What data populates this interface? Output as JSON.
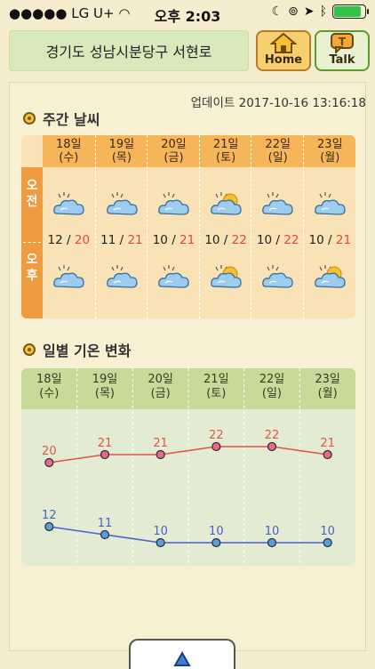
{
  "status": {
    "carrier": "LG U+",
    "time": "오후 2:03",
    "battery_level": 0.9
  },
  "header": {
    "location": "경기도 성남시분당구 서현로",
    "home_label": "Home",
    "talk_label": "Talk"
  },
  "update_text": "업데이트 2017-10-16 13:16:18",
  "weekly": {
    "title": "주간 날씨",
    "am_label": "오\n전",
    "pm_label": "오\n후",
    "days": [
      {
        "date": "18일",
        "dow": "(수)",
        "low": "12",
        "high": "20",
        "am_icon": "cloudy-icon",
        "pm_icon": "cloudy-icon"
      },
      {
        "date": "19일",
        "dow": "(목)",
        "low": "11",
        "high": "21",
        "am_icon": "cloudy-icon",
        "pm_icon": "cloudy-icon"
      },
      {
        "date": "20일",
        "dow": "(금)",
        "low": "10",
        "high": "21",
        "am_icon": "cloudy-icon",
        "pm_icon": "cloudy-icon"
      },
      {
        "date": "21일",
        "dow": "(토)",
        "low": "10",
        "high": "22",
        "am_icon": "partly-cloudy-icon",
        "pm_icon": "partly-cloudy-icon"
      },
      {
        "date": "22일",
        "dow": "(일)",
        "low": "10",
        "high": "22",
        "am_icon": "cloudy-icon",
        "pm_icon": "cloudy-icon"
      },
      {
        "date": "23일",
        "dow": "(월)",
        "low": "10",
        "high": "21",
        "am_icon": "cloudy-icon",
        "pm_icon": "partly-cloudy-icon"
      }
    ]
  },
  "daily_change": {
    "title": "일별 기온 변화"
  },
  "chart_data": {
    "type": "line",
    "categories": [
      "18일(수)",
      "19일(목)",
      "20일(금)",
      "21일(토)",
      "22일(일)",
      "23일(월)"
    ],
    "series": [
      {
        "values": [
          20,
          21,
          21,
          22,
          22,
          21
        ],
        "color": "#e05548"
      },
      {
        "values": [
          12,
          11,
          10,
          10,
          10,
          10
        ],
        "color": "#4a5fd0"
      }
    ],
    "ylim": [
      8,
      24
    ]
  }
}
